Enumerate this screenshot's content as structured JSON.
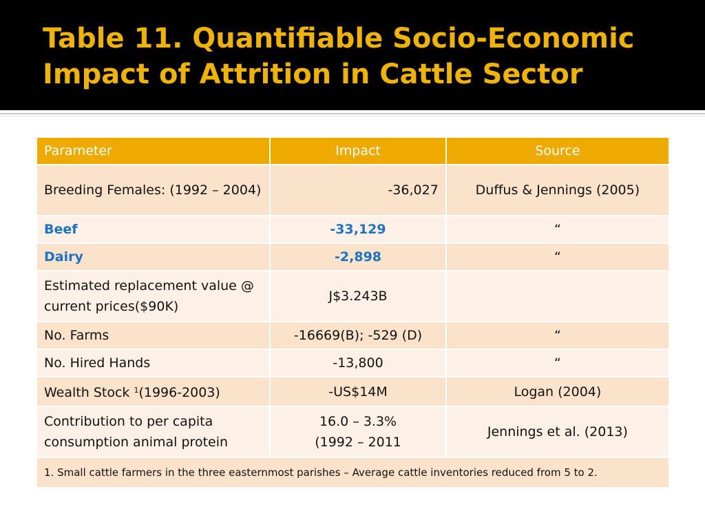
{
  "slide": {
    "title": "Table 11. Quantifiable Socio-Economic Impact of Attrition in Cattle Sector"
  },
  "table": {
    "headers": [
      "Parameter",
      "Impact",
      "Source"
    ],
    "rows": [
      {
        "parameter": "Breeding Females: (1992 – 2004)",
        "impact": "-36,027",
        "source": "Duffus & Jennings (2005)"
      },
      {
        "parameter": "Beef",
        "impact": "-33,129",
        "source": "“"
      },
      {
        "parameter": "Dairy",
        "impact": "-2,898",
        "source": "“"
      },
      {
        "parameter": "Estimated replacement value @ current prices($90K)",
        "impact": "J$3.243B",
        "source": ""
      },
      {
        "parameter": "No. Farms",
        "impact": "-16669(B); -529 (D)",
        "source": "“"
      },
      {
        "parameter": "No. Hired Hands",
        "impact": "-13,800",
        "source": "“"
      },
      {
        "parameter": "Wealth Stock",
        "parameter_sup": "1",
        "parameter_suffix": "(1996-2003)",
        "impact": "-US$14M",
        "source": "Logan (2004)"
      },
      {
        "parameter": "Contribution to per capita consumption animal protein",
        "impact": "16.0 – 3.3%",
        "impact_line2": "(1992 – 2011",
        "source": "Jennings et al. (2013)"
      }
    ],
    "footnote": "1. Small cattle farmers in the three easternmost parishes – Average cattle inventories reduced from 5 to 2."
  },
  "colors": {
    "title": "#f0b400",
    "header_bg": "#eeaa00",
    "row_odd": "#fae2cb",
    "row_even": "#fdf0e6",
    "highlight_text": "#1a73c4"
  }
}
